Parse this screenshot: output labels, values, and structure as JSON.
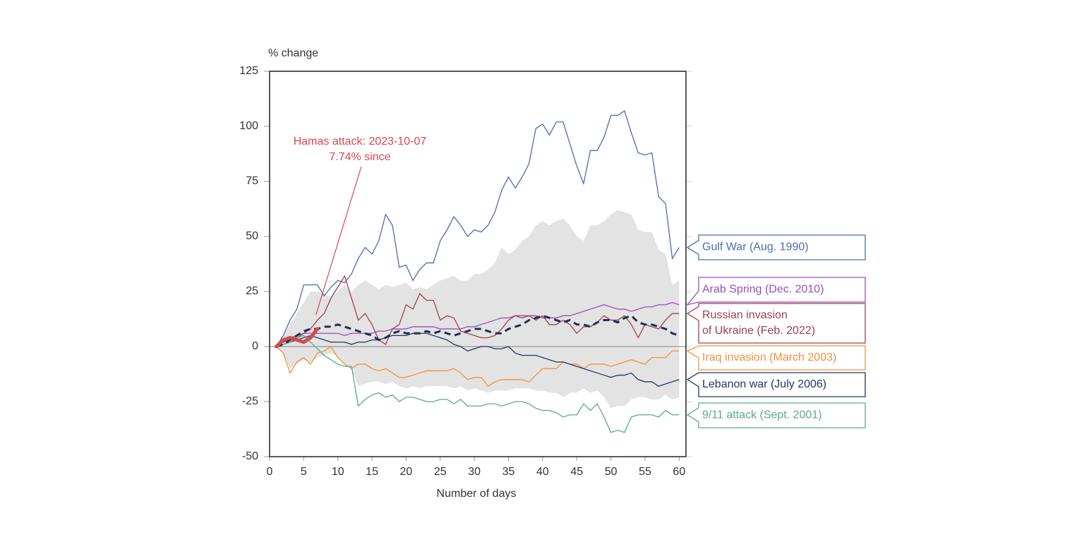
{
  "chart_data": {
    "type": "line",
    "ylabel": "% change",
    "xlabel": "Number of days",
    "xlim": [
      0,
      61
    ],
    "ylim": [
      -50,
      125
    ],
    "xticks": [
      0,
      5,
      10,
      15,
      20,
      25,
      30,
      35,
      40,
      45,
      50,
      55,
      60
    ],
    "yticks": [
      -50,
      -25,
      0,
      25,
      50,
      75,
      100,
      125
    ],
    "x": [
      1,
      2,
      3,
      4,
      5,
      6,
      7,
      8,
      9,
      10,
      11,
      12,
      13,
      14,
      15,
      16,
      17,
      18,
      19,
      20,
      21,
      22,
      23,
      24,
      25,
      26,
      27,
      28,
      29,
      30,
      31,
      32,
      33,
      34,
      35,
      36,
      37,
      38,
      39,
      40,
      41,
      42,
      43,
      44,
      45,
      46,
      47,
      48,
      49,
      50,
      51,
      52,
      53,
      54,
      55,
      56,
      57,
      58,
      59,
      60
    ],
    "band": {
      "color": "#e3e3e3",
      "upper": [
        0,
        5,
        10,
        15,
        20,
        25,
        25,
        24,
        22,
        25,
        28,
        25,
        28,
        30,
        28,
        26,
        28,
        27,
        28,
        29,
        26,
        27,
        26,
        28,
        30,
        31,
        32,
        30,
        30,
        33,
        33,
        35,
        38,
        45,
        42,
        44,
        48,
        50,
        55,
        57,
        55,
        57,
        58,
        55,
        50,
        48,
        55,
        55,
        57,
        60,
        62,
        61,
        60,
        53,
        52,
        52,
        44,
        42,
        28,
        30
      ],
      "lower": [
        0,
        -3,
        -10,
        -8,
        -6,
        -7,
        -5,
        -4,
        -3,
        -5,
        -8,
        -10,
        -18,
        -17,
        -16,
        -16,
        -17,
        -16,
        -18,
        -19,
        -18,
        -19,
        -18,
        -18,
        -18,
        -18,
        -19,
        -18,
        -20,
        -19,
        -20,
        -21,
        -20,
        -20,
        -20,
        -19,
        -19,
        -19,
        -20,
        -20,
        -21,
        -21,
        -23,
        -21,
        -21,
        -19,
        -21,
        -20,
        -23,
        -28,
        -27,
        -27,
        -24,
        -23,
        -23,
        -24,
        -24,
        -22,
        -24,
        -23
      ]
    },
    "series": [
      {
        "name": "Gulf War (Aug. 1990)",
        "color": "#4a6db5",
        "values": [
          0,
          5,
          12,
          17,
          28,
          28,
          28,
          23,
          27,
          30,
          29,
          33,
          40,
          45,
          42,
          48,
          60,
          55,
          36,
          37,
          30,
          35,
          38,
          38,
          48,
          53,
          59,
          55,
          50,
          53,
          52,
          55,
          61,
          71,
          77,
          72,
          77,
          83,
          99,
          101,
          96,
          102,
          102,
          92,
          82,
          74,
          89,
          89,
          95,
          105,
          105,
          107,
          97,
          88,
          87,
          88,
          68,
          65,
          40,
          45
        ]
      },
      {
        "name": "Arab Spring (Dec. 2010)",
        "color": "#9b4dbf",
        "values": [
          0,
          2,
          4,
          5,
          6,
          6,
          6,
          6,
          6,
          6,
          5,
          6,
          6,
          6,
          6,
          7,
          7,
          8,
          8,
          8,
          9,
          9,
          9,
          9,
          8,
          8,
          8,
          8,
          9,
          9,
          10,
          11,
          12,
          13,
          13,
          14,
          14,
          14,
          14,
          13,
          13,
          13,
          14,
          14,
          15,
          16,
          17,
          18,
          19,
          18,
          17,
          17,
          16,
          17,
          18,
          18,
          19,
          19,
          20,
          19
        ]
      },
      {
        "name": "Russian invasion\nof Ukraine (Feb. 2022)",
        "color": "#a04050",
        "values": [
          0,
          2,
          3,
          4,
          6,
          8,
          12,
          15,
          22,
          27,
          32,
          22,
          12,
          15,
          10,
          3,
          1,
          8,
          10,
          19,
          17,
          24,
          21,
          21,
          12,
          14,
          13,
          7,
          6,
          5,
          4,
          4,
          5,
          8,
          12,
          14,
          13,
          14,
          12,
          14,
          10,
          10,
          12,
          10,
          6,
          9,
          9,
          11,
          14,
          12,
          12,
          14,
          10,
          4,
          10,
          9,
          8,
          12,
          15,
          15
        ]
      },
      {
        "name": "Iraq invasion (March 2003)",
        "color": "#f0923c",
        "values": [
          0,
          -3,
          -12,
          -7,
          -5,
          -8,
          -3,
          -2,
          0,
          -5,
          -8,
          -10,
          -8,
          -8,
          -10,
          -11,
          -10,
          -12,
          -14,
          -14,
          -13,
          -12,
          -11,
          -11,
          -11,
          -11,
          -10,
          -12,
          -15,
          -14,
          -14,
          -18,
          -16,
          -15,
          -15,
          -15,
          -15,
          -16,
          -13,
          -10,
          -10,
          -10,
          -7,
          -8,
          -8,
          -10,
          -8,
          -8,
          -8,
          -9,
          -8,
          -7,
          -6,
          -7,
          -8,
          -5,
          -5,
          -5,
          -2,
          -2
        ]
      },
      {
        "name": "Lebanon war (July 2006)",
        "color": "#1f3864",
        "values": [
          0,
          1,
          2,
          3,
          4,
          5,
          4,
          3,
          2,
          2,
          2,
          1,
          2,
          2,
          3,
          3,
          4,
          5,
          5,
          5,
          6,
          6,
          6,
          5,
          4,
          3,
          1,
          0,
          -2,
          -1,
          0,
          0,
          -1,
          -1,
          0,
          -3,
          -4,
          -4,
          -4,
          -5,
          -6,
          -7,
          -7,
          -8,
          -9,
          -10,
          -11,
          -12,
          -13,
          -14,
          -13,
          -13,
          -12,
          -15,
          -16,
          -16,
          -18,
          -17,
          -16,
          -15
        ]
      },
      {
        "name": "9/11 attack (Sept. 2001)",
        "color": "#5aaa8f",
        "values": [
          0,
          1,
          2,
          4,
          5,
          2,
          -1,
          -4,
          -6,
          -8,
          -9,
          -9,
          -27,
          -24,
          -22,
          -21,
          -23,
          -22,
          -25,
          -23,
          -23,
          -24,
          -25,
          -25,
          -24,
          -24,
          -26,
          -24,
          -27,
          -27,
          -27,
          -26,
          -26,
          -27,
          -26,
          -25,
          -25,
          -26,
          -28,
          -29,
          -29,
          -30,
          -32,
          -31,
          -31,
          -26,
          -29,
          -26,
          -32,
          -39,
          -38,
          -39,
          -32,
          -31,
          -31,
          -31,
          -32,
          -29,
          -31,
          -31
        ]
      }
    ],
    "average": {
      "color": "#1f3050",
      "values": [
        0,
        1,
        3,
        5,
        7,
        8,
        8,
        9,
        9,
        10,
        9,
        8,
        7,
        6,
        5,
        3,
        4,
        6,
        7,
        6,
        6,
        6,
        7,
        6,
        7,
        6,
        5,
        6,
        7,
        8,
        8,
        7,
        6,
        6,
        8,
        9,
        10,
        12,
        13,
        14,
        13,
        12,
        11,
        12,
        10,
        10,
        9,
        11,
        12,
        12,
        11,
        13,
        14,
        11,
        10,
        10,
        9,
        8,
        6,
        5
      ]
    },
    "highlight": {
      "color": "#d9474f",
      "x": [
        1,
        2,
        3,
        4,
        5,
        6,
        7
      ],
      "values": [
        0,
        3,
        4,
        3,
        2,
        4,
        8
      ]
    },
    "annotation": {
      "lines": [
        "Hamas attack: 2023-10-07",
        "7.74% since"
      ],
      "color": "#d9474f"
    }
  }
}
